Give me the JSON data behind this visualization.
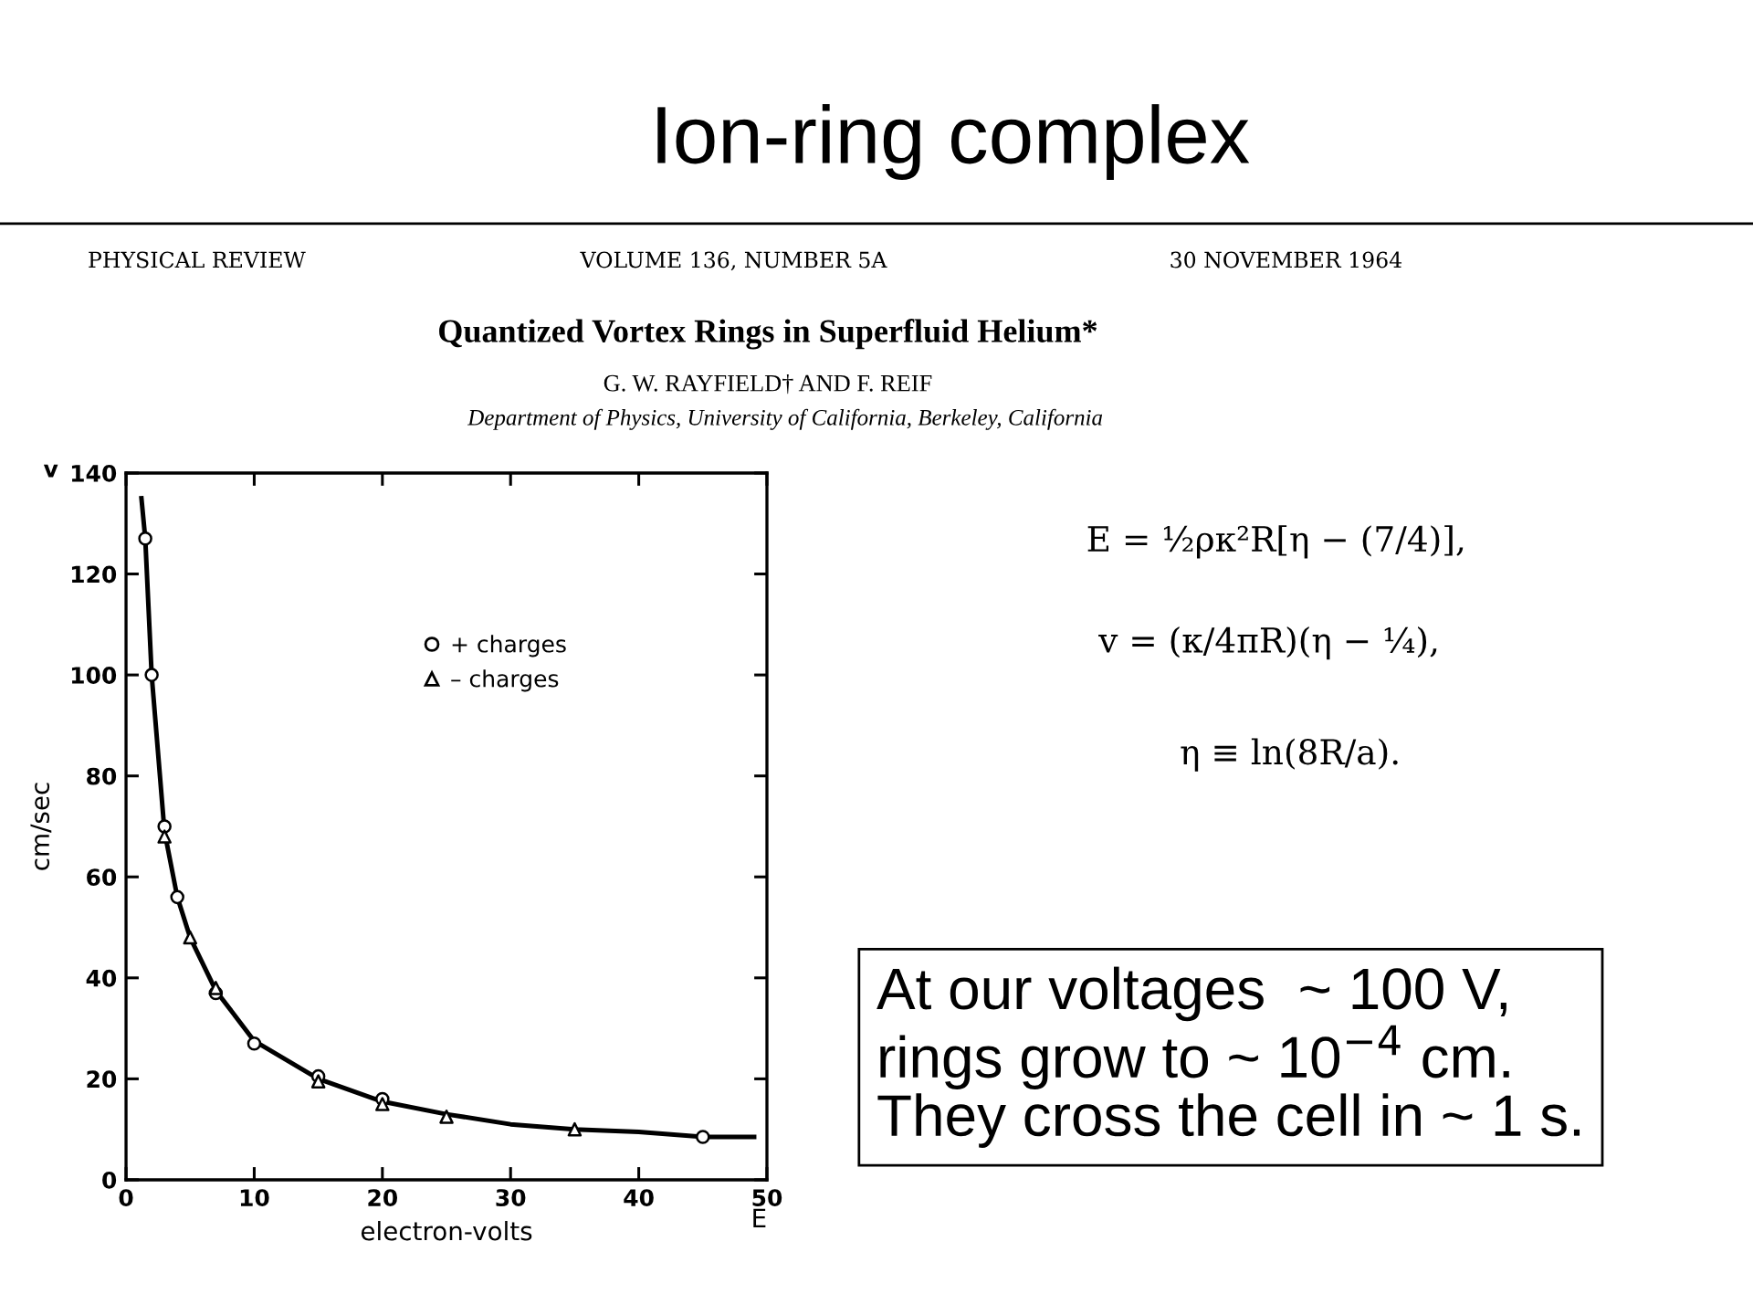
{
  "chart_data": {
    "type": "scatter",
    "title": "Ion-ring complex",
    "xlabel": "electron-volts",
    "ylabel": "cm/sec",
    "xlim": [
      0,
      50
    ],
    "ylim": [
      0,
      140
    ],
    "xticks": [
      0,
      10,
      20,
      30,
      40,
      50
    ],
    "yticks": [
      0,
      20,
      40,
      60,
      80,
      100,
      120,
      140
    ],
    "grid": false,
    "legend": "top right",
    "series": [
      {
        "name": "+ charges",
        "marker": "circle",
        "color": "#000000",
        "x": [
          1.5,
          2,
          3,
          4,
          7,
          10,
          15,
          20,
          45
        ],
        "values": [
          127,
          100,
          70,
          56,
          37,
          27,
          20.5,
          16,
          8.5
        ]
      },
      {
        "name": "– charges",
        "marker": "triangle",
        "color": "#000000",
        "x": [
          3,
          5,
          7,
          15,
          20,
          25,
          35
        ],
        "values": [
          68,
          48,
          38,
          19.5,
          15,
          12.5,
          10
        ]
      },
      {
        "type": "line",
        "marker": "none",
        "line_style": "solid",
        "color": "#000000",
        "x": [
          1.2,
          1.5,
          2,
          3,
          4,
          5,
          7,
          10,
          15,
          20,
          25,
          30,
          35,
          40,
          45,
          49
        ],
        "values": [
          135,
          127,
          100,
          69,
          56,
          48,
          37.5,
          27.5,
          20,
          15.5,
          13,
          11,
          10,
          9.5,
          8.5,
          8.5
        ]
      }
    ],
    "annotations": [
      "PHYSICAL REVIEW",
      "VOLUME 136, NUMBER 5A",
      "30 NOVEMBER 1964",
      "Quantized Vortex Rings in Superfluid Helium*",
      "G. W. RAYFIELD† AND F. REIF",
      "Department of Physics, University of California, Berkeley, California",
      "E = ½ρκ²R[η − (7/4)],",
      "v = (κ/4πR)(η − ¼),",
      "η ≡ ln(8R/a).",
      "At our voltages  ~ 100 V,\nrings grow to ~ 10$^{−4}$ cm.\nThey cross the cell in ~ 1 s.",
      "v",
      "E"
    ]
  }
}
